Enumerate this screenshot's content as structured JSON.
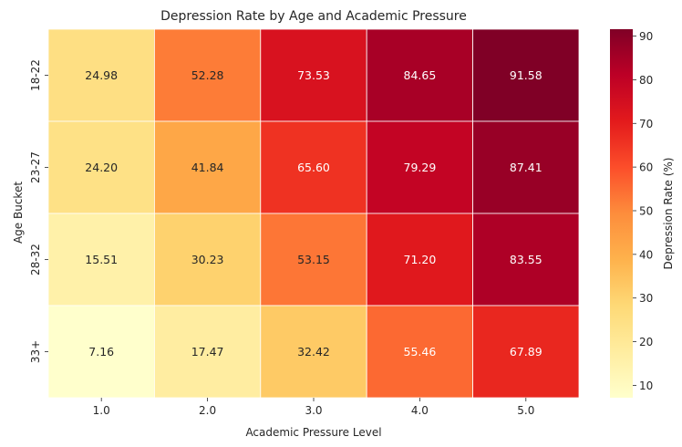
{
  "chart_data": {
    "type": "heatmap",
    "title": "Depression Rate by Age and Academic Pressure",
    "xlabel": "Academic Pressure Level",
    "ylabel": "Age Bucket",
    "x_categories": [
      "1.0",
      "2.0",
      "3.0",
      "4.0",
      "5.0"
    ],
    "y_categories": [
      "18-22",
      "23-27",
      "28-32",
      "33+"
    ],
    "values": [
      [
        24.98,
        52.28,
        73.53,
        84.65,
        91.58
      ],
      [
        24.2,
        41.84,
        65.6,
        79.29,
        87.41
      ],
      [
        15.51,
        30.23,
        53.15,
        71.2,
        83.55
      ],
      [
        7.16,
        17.47,
        32.42,
        55.46,
        67.89
      ]
    ],
    "value_labels": [
      [
        "24.98",
        "52.28",
        "73.53",
        "84.65",
        "91.58"
      ],
      [
        "24.20",
        "41.84",
        "65.60",
        "79.29",
        "87.41"
      ],
      [
        "15.51",
        "30.23",
        "53.15",
        "71.20",
        "83.55"
      ],
      [
        "7.16",
        "17.47",
        "32.42",
        "55.46",
        "67.89"
      ]
    ],
    "colorbar": {
      "label": "Depression Rate (%)",
      "range": [
        7.16,
        91.58
      ],
      "ticks": [
        10,
        20,
        30,
        40,
        50,
        60,
        70,
        80,
        90
      ],
      "colormap": "YlOrRd"
    },
    "grid": false,
    "legend": "none"
  }
}
